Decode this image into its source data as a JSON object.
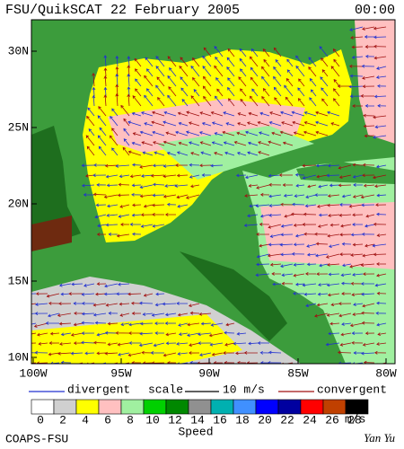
{
  "header": {
    "title": "FSU/QuikSCAT 22 February 2005",
    "time": "00:00"
  },
  "map": {
    "lat_labels": [
      "30N",
      "25N",
      "20N",
      "15N",
      "10N"
    ],
    "lon_labels": [
      "100W",
      "95W",
      "90W",
      "85W",
      "80W"
    ]
  },
  "legend": {
    "divergent": "divergent",
    "scale": "scale",
    "scale_value": "10 m/s",
    "convergent": "convergent",
    "divergent_color": "#2030d0",
    "convergent_color": "#a01010"
  },
  "colorbar": {
    "labels": [
      "0",
      "2",
      "4",
      "6",
      "8",
      "10",
      "12",
      "14",
      "16",
      "18",
      "20",
      "22",
      "24",
      "26",
      "28"
    ],
    "colors": [
      "#ffffff",
      "#d0d0d0",
      "#ffff00",
      "#ffc0c0",
      "#a0f0a0",
      "#00d000",
      "#008800",
      "#909090",
      "#00b0b0",
      "#4090ff",
      "#0000ff",
      "#0000a0",
      "#ff0000",
      "#c04000",
      "#000000"
    ],
    "unit": "m/s",
    "title": "Speed"
  },
  "footer": {
    "left": "COAPS-FSU",
    "right": "Yan Yu"
  }
}
